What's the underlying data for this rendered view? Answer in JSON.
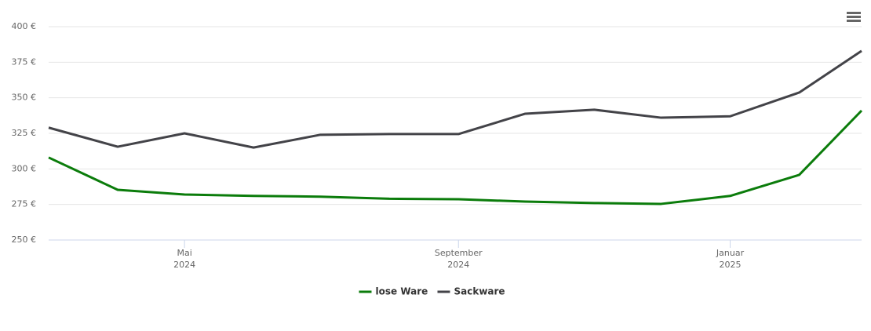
{
  "chart_data": {
    "type": "line",
    "x": [
      "2024-03",
      "2024-04",
      "2024-05",
      "2024-06",
      "2024-07",
      "2024-08",
      "2024-09",
      "2024-10",
      "2024-11",
      "2024-12",
      "2025-01",
      "2025-02",
      "2025-03"
    ],
    "series": [
      {
        "name": "lose Ware",
        "color": "#0b7c0b",
        "values": [
          308,
          285.3,
          282,
          281,
          280.5,
          279,
          278.7,
          277,
          276,
          275.4,
          281,
          295.8,
          341
        ]
      },
      {
        "name": "Sackware",
        "color": "#434348",
        "values": [
          329,
          315.6,
          325,
          315,
          324,
          324.5,
          324.5,
          338.8,
          341.6,
          336,
          337,
          353.7,
          383
        ]
      }
    ],
    "xlim": [
      "2024-03",
      "2025-03"
    ],
    "xticks": [
      {
        "value": "2024-05",
        "label": [
          "Mai",
          "2024"
        ]
      },
      {
        "value": "2024-09",
        "label": [
          "September",
          "2024"
        ]
      },
      {
        "value": "2025-01",
        "label": [
          "Januar",
          "2025"
        ]
      }
    ],
    "ylim": [
      250,
      400
    ],
    "yticks": [
      {
        "value": 250,
        "label": "250 €"
      },
      {
        "value": 275,
        "label": "275 €"
      },
      {
        "value": 300,
        "label": "300 €"
      },
      {
        "value": 325,
        "label": "325 €"
      },
      {
        "value": 350,
        "label": "350 €"
      },
      {
        "value": 375,
        "label": "375 €"
      },
      {
        "value": 400,
        "label": "400 €"
      }
    ],
    "grid": true
  }
}
